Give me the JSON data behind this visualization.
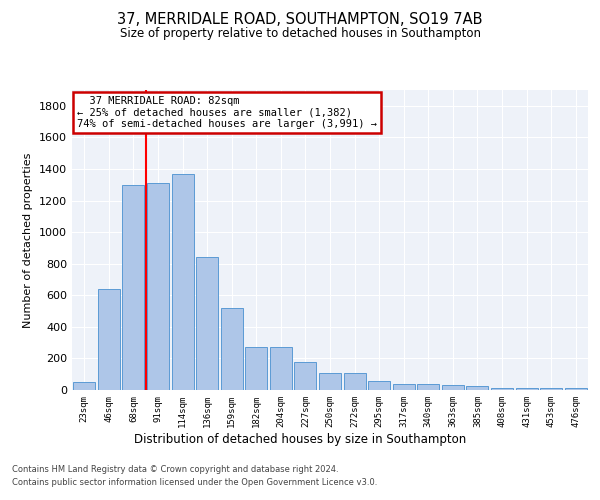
{
  "title": "37, MERRIDALE ROAD, SOUTHAMPTON, SO19 7AB",
  "subtitle": "Size of property relative to detached houses in Southampton",
  "xlabel": "Distribution of detached houses by size in Southampton",
  "ylabel": "Number of detached properties",
  "categories": [
    "23sqm",
    "46sqm",
    "68sqm",
    "91sqm",
    "114sqm",
    "136sqm",
    "159sqm",
    "182sqm",
    "204sqm",
    "227sqm",
    "250sqm",
    "272sqm",
    "295sqm",
    "317sqm",
    "340sqm",
    "363sqm",
    "385sqm",
    "408sqm",
    "431sqm",
    "453sqm",
    "476sqm"
  ],
  "values": [
    50,
    640,
    1300,
    1310,
    1370,
    845,
    520,
    275,
    275,
    175,
    105,
    105,
    60,
    40,
    40,
    30,
    25,
    15,
    15,
    10,
    10
  ],
  "bar_color": "#aec6e8",
  "bar_edge_color": "#5b9bd5",
  "annotation_text": "  37 MERRIDALE ROAD: 82sqm\n← 25% of detached houses are smaller (1,382)\n74% of semi-detached houses are larger (3,991) →",
  "annotation_box_color": "#ffffff",
  "annotation_box_edge_color": "#cc0000",
  "property_line_x": 2.5,
  "ylim": [
    0,
    1900
  ],
  "yticks": [
    0,
    200,
    400,
    600,
    800,
    1000,
    1200,
    1400,
    1600,
    1800
  ],
  "bg_color": "#eef2f9",
  "footer_line1": "Contains HM Land Registry data © Crown copyright and database right 2024.",
  "footer_line2": "Contains public sector information licensed under the Open Government Licence v3.0."
}
